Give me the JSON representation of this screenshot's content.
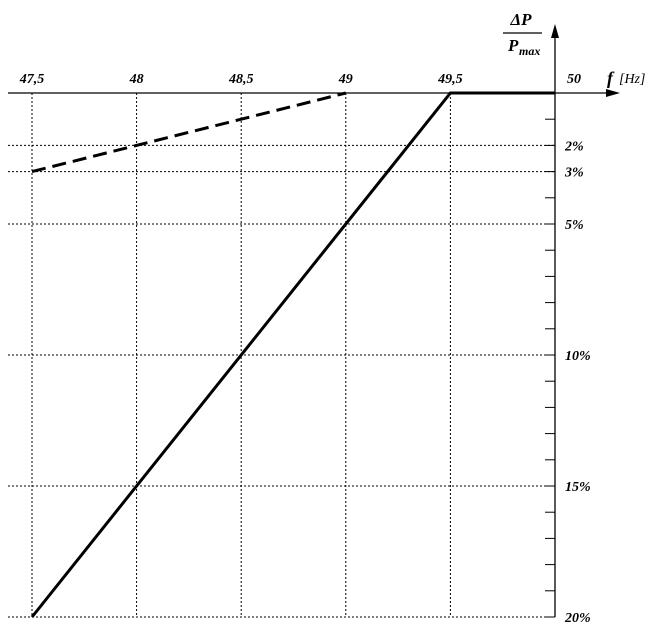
{
  "chart_data": {
    "type": "line",
    "x_axis": {
      "label": "f",
      "unit": "[Hz]",
      "range": [
        47.5,
        50
      ],
      "ticks": [
        47.5,
        48,
        48.5,
        49,
        49.5,
        50
      ],
      "tick_labels": [
        "47,5",
        "48",
        "48,5",
        "49",
        "49,5",
        "50"
      ]
    },
    "y_axis": {
      "label_numerator": "ΔP",
      "label_denominator": "P",
      "label_subscript": "max",
      "range_percent": [
        0,
        20
      ],
      "inverted": true,
      "minor_tick_step_percent": 1,
      "labeled_ticks": [
        2,
        3,
        5,
        10,
        15,
        20
      ],
      "tick_labels": [
        "2%",
        "3%",
        "5%",
        "10%",
        "15%",
        "20%"
      ]
    },
    "grid": true,
    "series": [
      {
        "style": "solid",
        "color": "#000000",
        "points": [
          {
            "x": 47.5,
            "y": 20
          },
          {
            "x": 49.5,
            "y": 0
          },
          {
            "x": 50,
            "y": 0
          }
        ]
      },
      {
        "style": "dashed",
        "color": "#000000",
        "points": [
          {
            "x": 47.5,
            "y": 3
          },
          {
            "x": 49,
            "y": 0
          }
        ]
      }
    ]
  }
}
